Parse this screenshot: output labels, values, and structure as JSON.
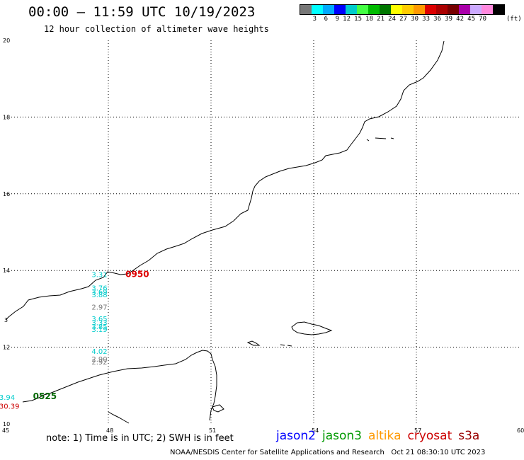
{
  "header": {
    "title": "00:00 – 11:59 UTC 10/19/2023",
    "subtitle": "12 hour collection of altimeter wave heights"
  },
  "legend": {
    "colors": [
      "#777777",
      "#00ffff",
      "#00aaff",
      "#0000ff",
      "#00cccc",
      "#44ff44",
      "#00bb00",
      "#007700",
      "#ffff00",
      "#ffcc00",
      "#ff9900",
      "#dd0000",
      "#aa0000",
      "#770000",
      "#aa00aa",
      "#ccaaff",
      "#ff88dd",
      "#000000"
    ],
    "labels": [
      "3",
      "6",
      "9",
      "12",
      "15",
      "18",
      "21",
      "24",
      "27",
      "30",
      "33",
      "36",
      "39",
      "42",
      "45",
      "70"
    ],
    "unit": "(ft)"
  },
  "map": {
    "lon_labels": [
      "45",
      "48",
      "51",
      "54",
      "57",
      "60"
    ],
    "lat_labels": [
      "20",
      "18",
      "16",
      "14",
      "12",
      "10"
    ],
    "coast_left_edge_label": "3",
    "observations": [
      {
        "text": "3.31",
        "color": "#00cccc",
        "lon": 47.8,
        "lat": 13.9
      },
      {
        "text": "3.76",
        "color": "#00cccc",
        "lon": 47.8,
        "lat": 13.55
      },
      {
        "text": "3.69",
        "color": "#00cccc",
        "lon": 47.8,
        "lat": 13.45
      },
      {
        "text": "3.88",
        "color": "#00cccc",
        "lon": 47.8,
        "lat": 13.38
      },
      {
        "text": "2.97",
        "color": "#777777",
        "lon": 47.8,
        "lat": 13.05
      },
      {
        "text": "3.65",
        "color": "#00cccc",
        "lon": 47.8,
        "lat": 12.75
      },
      {
        "text": "3.33",
        "color": "#00cccc",
        "lon": 47.8,
        "lat": 12.65
      },
      {
        "text": "3.85",
        "color": "#00cccc",
        "lon": 47.8,
        "lat": 12.55
      },
      {
        "text": "3.19",
        "color": "#00cccc",
        "lon": 47.8,
        "lat": 12.47
      },
      {
        "text": "4.02",
        "color": "#00cccc",
        "lon": 47.8,
        "lat": 11.9
      },
      {
        "text": "2.90",
        "color": "#777777",
        "lon": 47.8,
        "lat": 11.7
      },
      {
        "text": "2.92",
        "color": "#777777",
        "lon": 47.8,
        "lat": 11.62
      },
      {
        "text": "3.94",
        "color": "#00cccc",
        "lon": 45.1,
        "lat": 10.7
      },
      {
        "text": "30.39",
        "color": "#cc0000",
        "lon": 45.1,
        "lat": 10.47
      }
    ],
    "pass_times": [
      {
        "text": "0950",
        "color": "#dd0000",
        "lon": 48.5,
        "lat": 13.9
      },
      {
        "text": "0525",
        "color": "#006600",
        "lon": 45.8,
        "lat": 10.72
      }
    ]
  },
  "footer": {
    "note": "note: 1) Time is in UTC; 2) SWH is in feet",
    "satellites": [
      {
        "name": "jason2",
        "color": "#0000ff"
      },
      {
        "name": "jason3",
        "color": "#009900"
      },
      {
        "name": "altika",
        "color": "#ff9900"
      },
      {
        "name": "cryosat",
        "color": "#cc0000"
      },
      {
        "name": "s3a",
        "color": "#990000"
      }
    ],
    "credit": "NOAA/NESDIS Center for Satellite Applications and Research   Oct 21 08:30:10 UTC 2023"
  }
}
